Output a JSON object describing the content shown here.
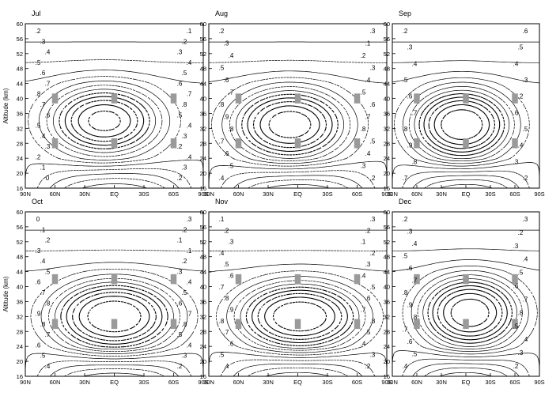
{
  "figure": {
    "ylabel": "Altitude (km)",
    "x_ticks": [
      "90N",
      "60N",
      "30N",
      "EQ",
      "30S",
      "60S",
      "90S"
    ],
    "y_ticks": [
      16,
      20,
      24,
      28,
      32,
      36,
      40,
      44,
      48,
      52,
      56,
      60
    ],
    "line_color": "#000000",
    "background": "#ffffff",
    "marker_color": "#9a9a9a"
  },
  "chart_data": [
    {
      "type": "contour",
      "title": "Jul",
      "xlim": [
        -90,
        90
      ],
      "ylim": [
        16,
        60
      ],
      "x_ticks": [
        "90N",
        "60N",
        "30N",
        "EQ",
        "30S",
        "60S",
        "90S"
      ],
      "y_ticks": [
        16,
        20,
        24,
        28,
        32,
        36,
        40,
        44,
        48,
        52,
        56,
        60
      ],
      "contour_labels": [
        ".2",
        ".3",
        ".4",
        ".5",
        ".6",
        ".7",
        ".8",
        ".7",
        ".6",
        ".5",
        ".4",
        ".3",
        ".2",
        ".1",
        "0",
        ".1",
        ".2",
        ".3",
        ".4",
        ".5",
        ".6",
        ".7",
        ".8",
        ".5",
        ".4",
        ".3",
        ".2",
        ".4",
        ".3",
        ".2"
      ],
      "marker_latitudes": [
        60,
        0,
        -60
      ],
      "marker_altitudes": [
        40,
        28
      ]
    },
    {
      "type": "contour",
      "title": "Aug",
      "xlim": [
        -90,
        90
      ],
      "ylim": [
        16,
        60
      ],
      "x_ticks": [
        "90N",
        "60N",
        "30N",
        "EQ",
        "30S",
        "60S",
        "90S"
      ],
      "y_ticks": [
        16,
        20,
        24,
        28,
        32,
        36,
        40,
        44,
        48,
        52,
        56,
        60
      ],
      "contour_labels": [
        ".2",
        ".3",
        ".4",
        ".5",
        ".6",
        ".7",
        ".8",
        ".9",
        ".8",
        ".7",
        ".6",
        ".5",
        ".4",
        ".3",
        ".1",
        ".2",
        ".3",
        ".4",
        ".5",
        ".6",
        ".7",
        ".8",
        ".5",
        ".4",
        ".3",
        ".2"
      ],
      "marker_latitudes": [
        60,
        0,
        -60
      ],
      "marker_altitudes": [
        40,
        28
      ]
    },
    {
      "type": "contour",
      "title": "Sep",
      "xlim": [
        -90,
        90
      ],
      "ylim": [
        16,
        60
      ],
      "x_ticks": [
        "90N",
        "60N",
        "30N",
        "EQ",
        "30S",
        "60S",
        "90S"
      ],
      "y_ticks": [
        16,
        20,
        24,
        28,
        32,
        36,
        40,
        44,
        48,
        52,
        56,
        60
      ],
      "contour_labels": [
        ".2",
        ".3",
        ".4",
        ".5",
        ".6",
        ".7",
        ".8",
        ".9",
        ".8",
        ".7",
        ".6",
        ".5",
        ".4",
        ".3",
        ".2",
        ".6",
        ".5",
        ".4",
        ".3",
        ".2"
      ],
      "marker_latitudes": [
        60,
        0,
        -60
      ],
      "marker_altitudes": [
        40,
        28
      ]
    },
    {
      "type": "contour",
      "title": "Oct",
      "xlim": [
        -90,
        90
      ],
      "ylim": [
        16,
        60
      ],
      "x_ticks": [
        "90N",
        "60N",
        "30N",
        "EQ",
        "30S",
        "60S",
        "90S"
      ],
      "y_ticks": [
        16,
        20,
        24,
        28,
        32,
        36,
        40,
        44,
        48,
        52,
        56,
        60
      ],
      "contour_labels": [
        "0",
        ".1",
        ".2",
        ".3",
        ".4",
        ".5",
        ".6",
        ".7",
        ".8",
        ".9",
        ".8",
        ".7",
        ".6",
        ".5",
        ".4",
        ".3",
        ".2",
        ".1",
        ".1",
        ".2",
        ".3",
        ".4",
        ".5",
        ".6",
        ".7",
        ".8",
        ".5",
        ".4",
        ".3",
        ".2"
      ],
      "marker_latitudes": [
        60,
        0,
        -60
      ],
      "marker_altitudes": [
        42,
        30
      ]
    },
    {
      "type": "contour",
      "title": "Nov",
      "xlim": [
        -90,
        90
      ],
      "ylim": [
        16,
        60
      ],
      "x_ticks": [
        "90N",
        "60N",
        "30N",
        "EQ",
        "30S",
        "60S",
        "90S"
      ],
      "y_ticks": [
        16,
        20,
        24,
        28,
        32,
        36,
        40,
        44,
        48,
        52,
        56,
        60
      ],
      "contour_labels": [
        ".1",
        ".2",
        ".3",
        ".4",
        ".5",
        ".6",
        ".7",
        ".8",
        ".9",
        ".8",
        ".7",
        ".6",
        ".5",
        ".4",
        ".3",
        ".2",
        ".1",
        ".2",
        ".3",
        ".4",
        ".5",
        ".6",
        ".7",
        ".8",
        ".5",
        ".4",
        ".3",
        ".2"
      ],
      "marker_latitudes": [
        60,
        0,
        -60
      ],
      "marker_altitudes": [
        42,
        30
      ]
    },
    {
      "type": "contour",
      "title": "Dec",
      "xlim": [
        -90,
        90
      ],
      "ylim": [
        16,
        60
      ],
      "x_ticks": [
        "90N",
        "60N",
        "30N",
        "EQ",
        "30S",
        "60S",
        "90S"
      ],
      "y_ticks": [
        16,
        20,
        24,
        28,
        32,
        36,
        40,
        44,
        48,
        52,
        56,
        60
      ],
      "contour_labels": [
        ".2",
        ".3",
        ".4",
        ".5",
        ".6",
        ".7",
        ".8",
        ".9",
        ".8",
        ".7",
        ".6",
        ".5",
        ".4",
        ".3",
        ".2",
        ".3",
        ".4",
        ".5",
        ".6",
        ".7",
        ".8",
        ".5",
        ".4",
        ".3",
        ".2"
      ],
      "marker_latitudes": [
        60,
        0,
        -60
      ],
      "marker_altitudes": [
        42,
        30
      ]
    }
  ]
}
